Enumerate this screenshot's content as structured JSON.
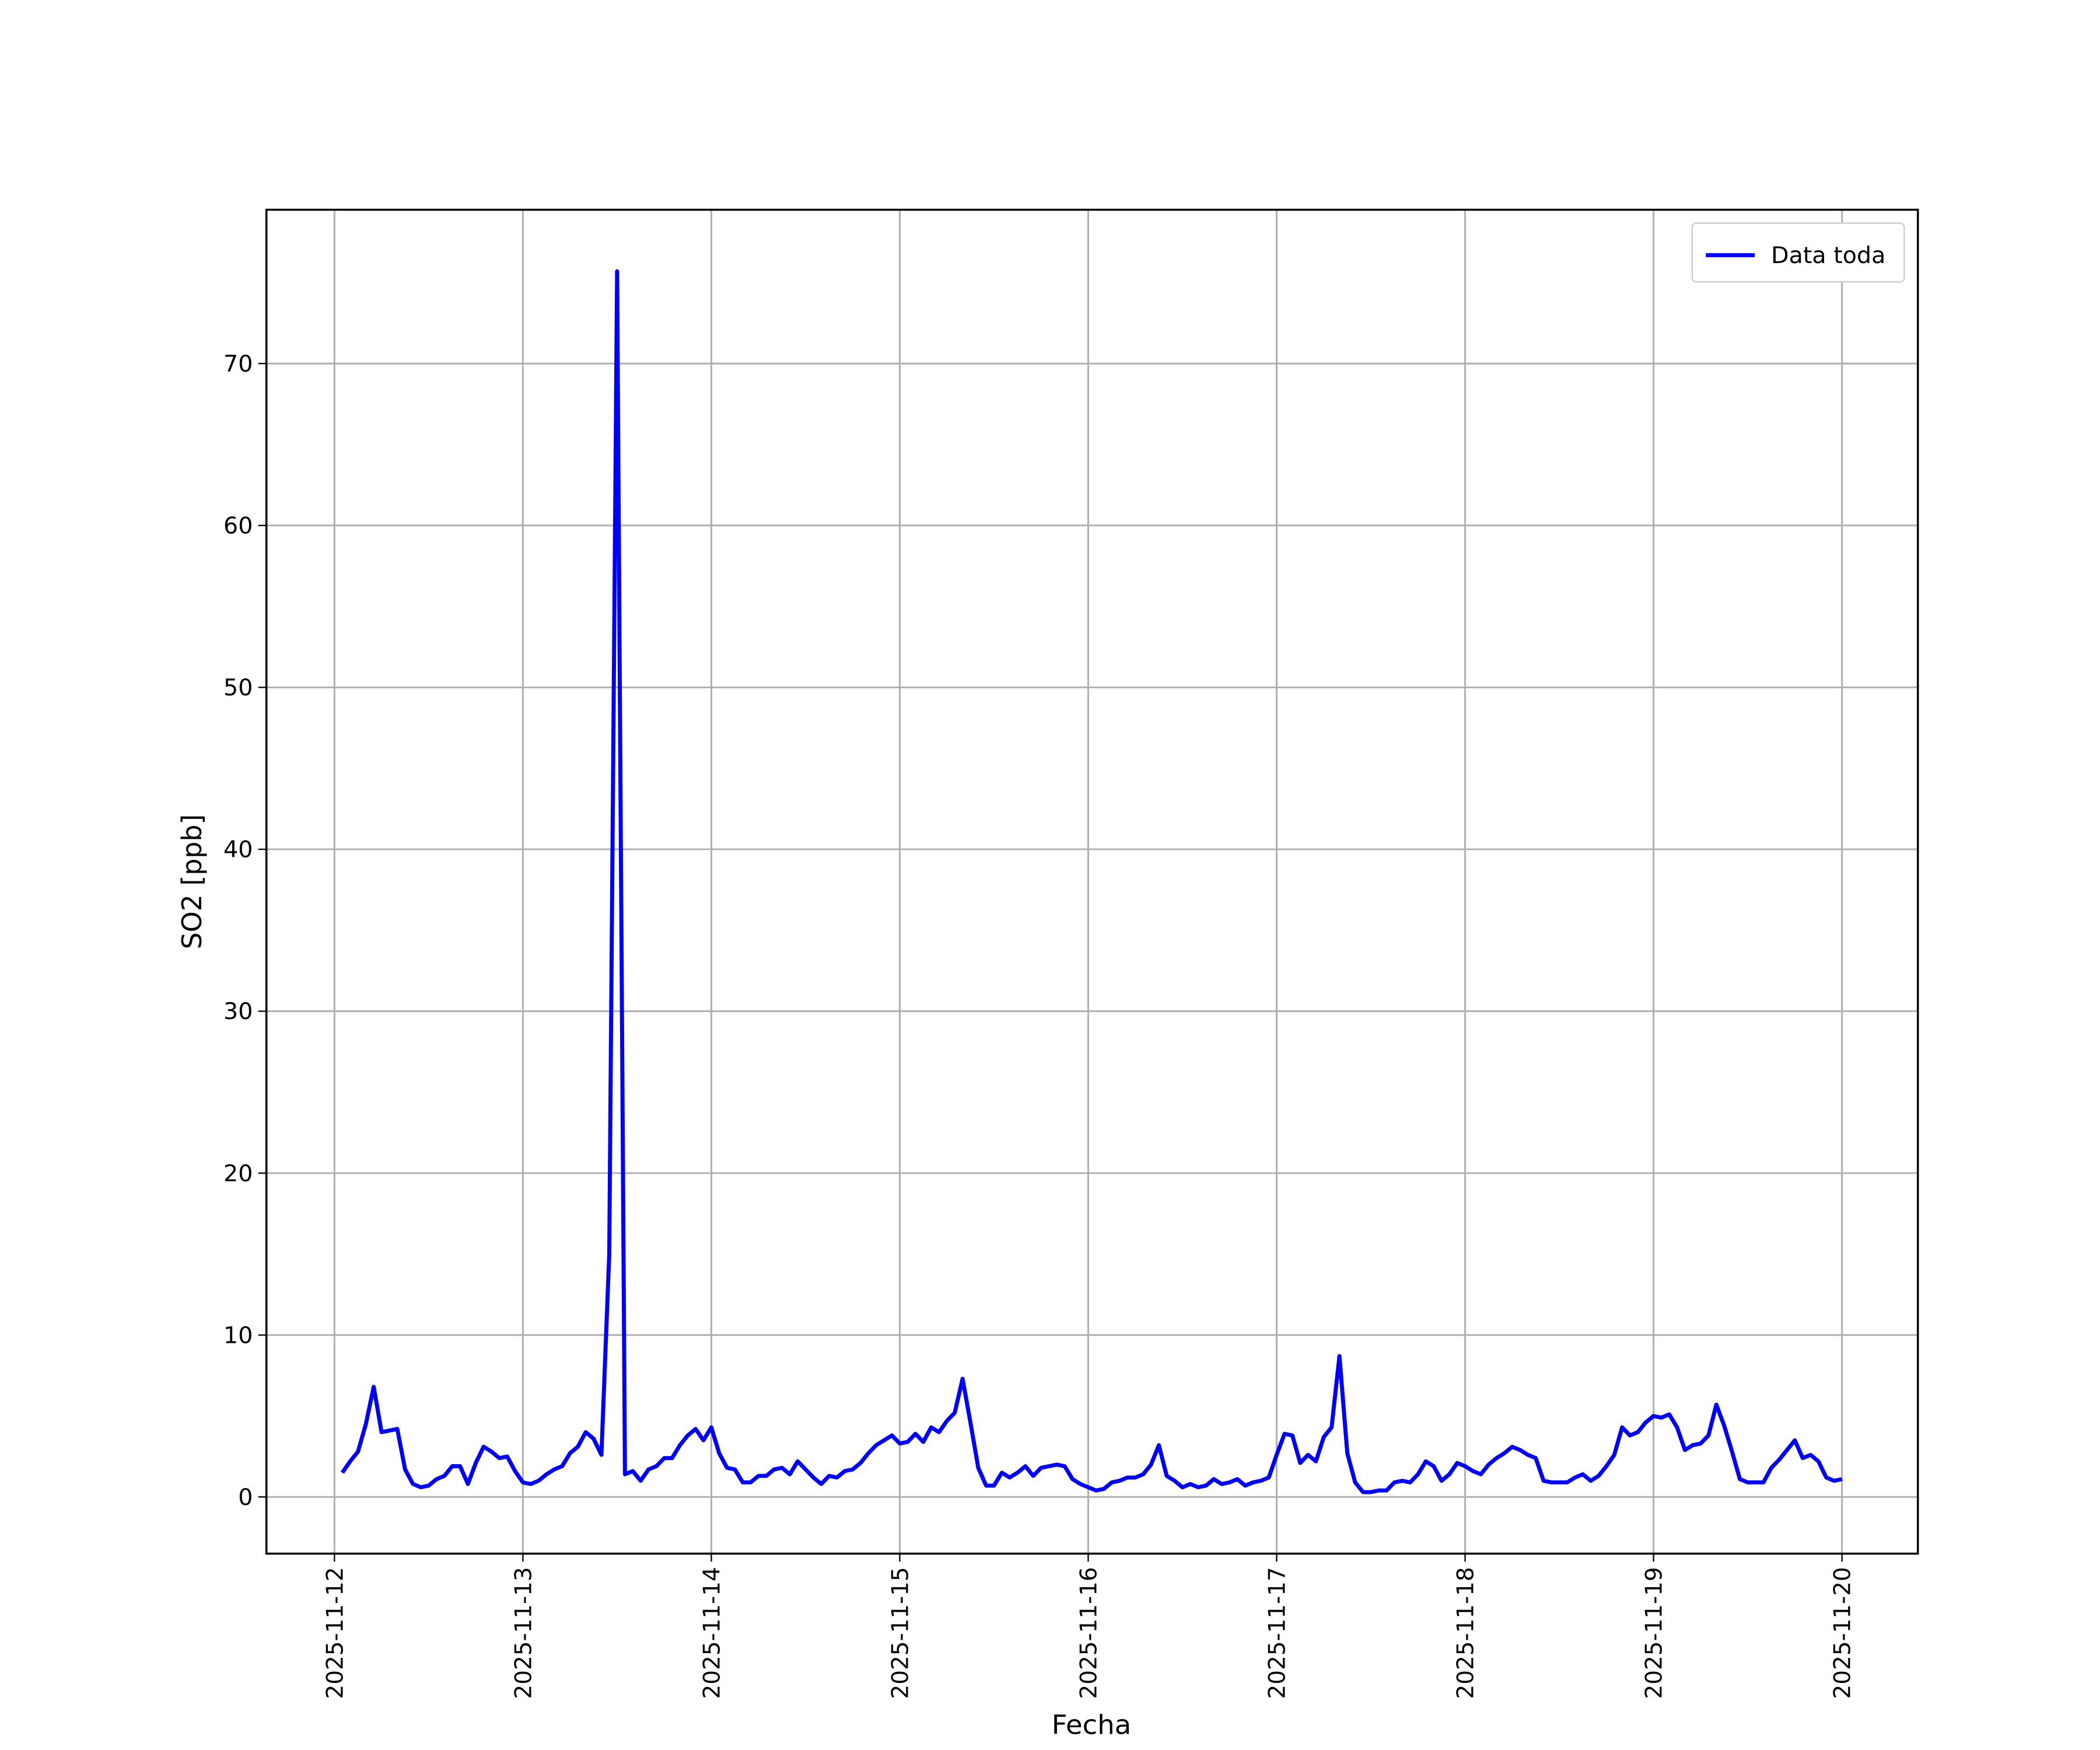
{
  "chart_data": {
    "type": "line",
    "xlabel": "Fecha",
    "ylabel": "SO2 [ppb]",
    "x": [
      "2025-11-12 01:00",
      "2025-11-12 02:00",
      "2025-11-12 03:00",
      "2025-11-12 04:00",
      "2025-11-12 05:00",
      "2025-11-12 06:00",
      "2025-11-12 07:00",
      "2025-11-12 08:00",
      "2025-11-12 09:00",
      "2025-11-12 10:00",
      "2025-11-12 11:00",
      "2025-11-12 12:00",
      "2025-11-12 13:00",
      "2025-11-12 14:00",
      "2025-11-12 15:00",
      "2025-11-12 16:00",
      "2025-11-12 17:00",
      "2025-11-12 18:00",
      "2025-11-12 19:00",
      "2025-11-12 20:00",
      "2025-11-12 21:00",
      "2025-11-12 22:00",
      "2025-11-12 23:00",
      "2025-11-13 00:00",
      "2025-11-13 01:00",
      "2025-11-13 02:00",
      "2025-11-13 03:00",
      "2025-11-13 04:00",
      "2025-11-13 05:00",
      "2025-11-13 06:00",
      "2025-11-13 07:00",
      "2025-11-13 08:00",
      "2025-11-13 09:00",
      "2025-11-13 10:00",
      "2025-11-13 11:00",
      "2025-11-13 12:00",
      "2025-11-13 13:00",
      "2025-11-13 14:00",
      "2025-11-13 15:00",
      "2025-11-13 16:00",
      "2025-11-13 17:00",
      "2025-11-13 18:00",
      "2025-11-13 19:00",
      "2025-11-13 20:00",
      "2025-11-13 21:00",
      "2025-11-13 22:00",
      "2025-11-13 23:00",
      "2025-11-14 00:00",
      "2025-11-14 01:00",
      "2025-11-14 02:00",
      "2025-11-14 03:00",
      "2025-11-14 04:00",
      "2025-11-14 05:00",
      "2025-11-14 06:00",
      "2025-11-14 07:00",
      "2025-11-14 08:00",
      "2025-11-14 09:00",
      "2025-11-14 10:00",
      "2025-11-14 11:00",
      "2025-11-14 12:00",
      "2025-11-14 13:00",
      "2025-11-14 14:00",
      "2025-11-14 15:00",
      "2025-11-14 16:00",
      "2025-11-14 17:00",
      "2025-11-14 18:00",
      "2025-11-14 19:00",
      "2025-11-14 20:00",
      "2025-11-14 21:00",
      "2025-11-14 22:00",
      "2025-11-14 23:00",
      "2025-11-15 00:00",
      "2025-11-15 01:00",
      "2025-11-15 02:00",
      "2025-11-15 03:00",
      "2025-11-15 04:00",
      "2025-11-15 05:00",
      "2025-11-15 06:00",
      "2025-11-15 07:00",
      "2025-11-15 08:00",
      "2025-11-15 09:00",
      "2025-11-15 10:00",
      "2025-11-15 11:00",
      "2025-11-15 12:00",
      "2025-11-15 13:00",
      "2025-11-15 14:00",
      "2025-11-15 15:00",
      "2025-11-15 16:00",
      "2025-11-15 17:00",
      "2025-11-15 18:00",
      "2025-11-15 19:00",
      "2025-11-15 20:00",
      "2025-11-15 21:00",
      "2025-11-15 22:00",
      "2025-11-15 23:00",
      "2025-11-16 00:00",
      "2025-11-16 01:00",
      "2025-11-16 02:00",
      "2025-11-16 03:00",
      "2025-11-16 04:00",
      "2025-11-16 05:00",
      "2025-11-16 06:00",
      "2025-11-16 07:00",
      "2025-11-16 08:00",
      "2025-11-16 09:00",
      "2025-11-16 10:00",
      "2025-11-16 11:00",
      "2025-11-16 12:00",
      "2025-11-16 13:00",
      "2025-11-16 14:00",
      "2025-11-16 15:00",
      "2025-11-16 16:00",
      "2025-11-16 17:00",
      "2025-11-16 18:00",
      "2025-11-16 19:00",
      "2025-11-16 20:00",
      "2025-11-16 21:00",
      "2025-11-16 22:00",
      "2025-11-16 23:00",
      "2025-11-17 00:00",
      "2025-11-17 01:00",
      "2025-11-17 02:00",
      "2025-11-17 03:00",
      "2025-11-17 04:00",
      "2025-11-17 05:00",
      "2025-11-17 06:00",
      "2025-11-17 07:00",
      "2025-11-17 08:00",
      "2025-11-17 09:00",
      "2025-11-17 10:00",
      "2025-11-17 11:00",
      "2025-11-17 12:00",
      "2025-11-17 13:00",
      "2025-11-17 14:00",
      "2025-11-17 15:00",
      "2025-11-17 16:00",
      "2025-11-17 17:00",
      "2025-11-17 18:00",
      "2025-11-17 19:00",
      "2025-11-17 20:00",
      "2025-11-17 21:00",
      "2025-11-17 22:00",
      "2025-11-17 23:00",
      "2025-11-18 00:00",
      "2025-11-18 01:00",
      "2025-11-18 02:00",
      "2025-11-18 03:00",
      "2025-11-18 04:00",
      "2025-11-18 05:00",
      "2025-11-18 06:00",
      "2025-11-18 07:00",
      "2025-11-18 08:00",
      "2025-11-18 09:00",
      "2025-11-18 10:00",
      "2025-11-18 11:00",
      "2025-11-18 12:00",
      "2025-11-18 13:00",
      "2025-11-18 14:00",
      "2025-11-18 15:00",
      "2025-11-18 16:00",
      "2025-11-18 17:00",
      "2025-11-18 18:00",
      "2025-11-18 19:00",
      "2025-11-18 20:00",
      "2025-11-18 21:00",
      "2025-11-18 22:00",
      "2025-11-18 23:00",
      "2025-11-19 00:00",
      "2025-11-19 01:00",
      "2025-11-19 02:00",
      "2025-11-19 03:00",
      "2025-11-19 04:00",
      "2025-11-19 05:00",
      "2025-11-19 06:00",
      "2025-11-19 07:00",
      "2025-11-19 08:00",
      "2025-11-19 09:00",
      "2025-11-19 10:00",
      "2025-11-19 11:00",
      "2025-11-19 12:00",
      "2025-11-19 13:00",
      "2025-11-19 14:00",
      "2025-11-19 15:00",
      "2025-11-19 16:00",
      "2025-11-19 17:00",
      "2025-11-19 18:00",
      "2025-11-19 19:00",
      "2025-11-19 20:00",
      "2025-11-19 21:00",
      "2025-11-19 22:00",
      "2025-11-19 23:00",
      "2025-11-20 00:00"
    ],
    "series": [
      {
        "name": "Data toda",
        "color": "#0000ff",
        "values": [
          1.5,
          2.2,
          2.8,
          4.5,
          6.8,
          4.0,
          4.1,
          4.2,
          1.7,
          0.8,
          0.6,
          0.7,
          1.1,
          1.3,
          1.9,
          1.9,
          0.8,
          2.1,
          3.1,
          2.8,
          2.4,
          2.5,
          1.6,
          0.9,
          0.8,
          1.0,
          1.4,
          1.7,
          1.9,
          2.7,
          3.1,
          4.0,
          3.6,
          2.6,
          15,
          75.7,
          1.4,
          1.6,
          1.0,
          1.7,
          1.9,
          2.4,
          2.4,
          3.2,
          3.8,
          4.2,
          3.5,
          4.3,
          2.7,
          1.8,
          1.7,
          0.9,
          0.9,
          1.3,
          1.3,
          1.7,
          1.8,
          1.4,
          2.2,
          1.7,
          1.2,
          0.8,
          1.3,
          1.2,
          1.6,
          1.7,
          2.1,
          2.7,
          3.2,
          3.5,
          3.8,
          3.3,
          3.4,
          3.9,
          3.4,
          4.3,
          4.0,
          4.7,
          5.2,
          7.3,
          4.6,
          1.8,
          0.7,
          0.7,
          1.5,
          1.2,
          1.5,
          1.9,
          1.3,
          1.8,
          1.9,
          2.0,
          1.9,
          1.1,
          0.8,
          0.6,
          0.4,
          0.5,
          0.9,
          1.0,
          1.2,
          1.2,
          1.4,
          2.0,
          3.2,
          1.3,
          1.0,
          0.6,
          0.8,
          0.6,
          0.7,
          1.1,
          0.8,
          0.9,
          1.1,
          0.7,
          0.9,
          1.0,
          1.2,
          2.6,
          3.9,
          3.8,
          2.1,
          2.6,
          2.2,
          3.7,
          4.3,
          8.7,
          2.7,
          0.9,
          0.3,
          0.3,
          0.4,
          0.4,
          0.9,
          1.0,
          0.9,
          1.4,
          2.2,
          1.9,
          1.0,
          1.4,
          2.1,
          1.9,
          1.6,
          1.4,
          2.0,
          2.4,
          2.7,
          3.1,
          2.9,
          2.6,
          2.4,
          1.0,
          0.9,
          0.9,
          0.9,
          1.2,
          1.4,
          1.0,
          1.3,
          1.9,
          2.6,
          4.3,
          3.8,
          4.0,
          4.6,
          5.0,
          4.9,
          5.1,
          4.3,
          2.9,
          3.2,
          3.3,
          3.8,
          5.7,
          4.4,
          2.8,
          1.1,
          0.9,
          0.9,
          0.9,
          1.8,
          2.3,
          2.9,
          3.5,
          2.4,
          2.6,
          2.2,
          1.2,
          1.0,
          1.1
        ]
      }
    ],
    "xlim": [
      "2025-11-11 15:20",
      "2025-11-20 09:40"
    ],
    "xticks": [
      "2025-11-12",
      "2025-11-13",
      "2025-11-14",
      "2025-11-15",
      "2025-11-16",
      "2025-11-17",
      "2025-11-18",
      "2025-11-19",
      "2025-11-20"
    ],
    "ylim": [
      -3.5,
      79.5
    ],
    "yticks": [
      0,
      10,
      20,
      30,
      40,
      50,
      60,
      70
    ],
    "grid": true,
    "legend": "upper right"
  }
}
